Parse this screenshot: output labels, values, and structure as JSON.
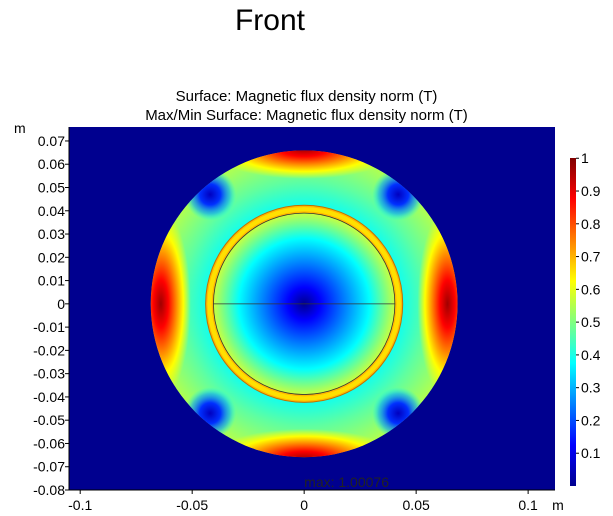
{
  "title": "Front",
  "plot_titles": [
    "Surface: Magnetic flux density norm (T)",
    "Max/Min Surface: Magnetic flux density norm (T)"
  ],
  "colorscale": [
    "#00008f",
    "#0000ff",
    "#0080ff",
    "#00ffff",
    "#80ff80",
    "#ffff00",
    "#ff8000",
    "#ff0000",
    "#800000"
  ],
  "background_color": "#00008f",
  "chart_data": {
    "type": "heatmap",
    "title": "Surface: Magnetic flux density norm (T)",
    "subtitle": "Max/Min Surface: Magnetic flux density norm (T)",
    "x_unit": "m",
    "y_unit": "m",
    "xlim": [
      -0.105,
      0.112
    ],
    "ylim": [
      -0.08,
      0.076
    ],
    "x_ticks": [
      -0.1,
      -0.05,
      0,
      0.05,
      0.1
    ],
    "x_tick_labels": [
      "-0.1",
      "-0.05",
      "0",
      "0.05",
      "0.1"
    ],
    "y_ticks": [
      0.07,
      0.06,
      0.05,
      0.04,
      0.03,
      0.02,
      0.01,
      0,
      -0.01,
      -0.02,
      -0.03,
      -0.04,
      -0.05,
      -0.06,
      -0.07,
      -0.08
    ],
    "y_tick_labels": [
      "0.07",
      "0.06",
      "0.05",
      "0.04",
      "0.03",
      "0.02",
      "0.01",
      "0",
      "-0.01",
      "-0.02",
      "-0.03",
      "-0.04",
      "-0.05",
      "-0.06",
      "-0.07",
      "-0.08"
    ],
    "colorbar_ticks": [
      1,
      0.9,
      0.8,
      0.7,
      0.6,
      0.5,
      0.4,
      0.3,
      0.2,
      0.1
    ],
    "colorbar_tick_labels": [
      "1",
      "0.9",
      "0.8",
      "0.7",
      "0.6",
      "0.5",
      "0.4",
      "0.3",
      "0.2",
      "0.1"
    ],
    "colorbar_range": [
      0,
      1.00076
    ],
    "outer_domain_radius": 0.0685,
    "rotor_outer_radius": 0.044,
    "rotor_inner_radius": 0.0405,
    "max_annotation": "max: 1.00076",
    "max_value": 1.00076,
    "field_samples": [
      {
        "region": "center",
        "x": 0,
        "y": 0,
        "value": 0.05
      },
      {
        "region": "rotor ring",
        "x": 0.042,
        "y": 0,
        "value": 0.65
      },
      {
        "region": "top pole",
        "x": 0,
        "y": 0.064,
        "value": 1.0
      },
      {
        "region": "bottom pole",
        "x": 0,
        "y": -0.064,
        "value": 1.0
      },
      {
        "region": "left pole",
        "x": -0.064,
        "y": 0,
        "value": 1.0
      },
      {
        "region": "right pole",
        "x": 0.064,
        "y": 0,
        "value": 1.0
      },
      {
        "region": "diagonal gaps",
        "x": 0.042,
        "y": 0.047,
        "value": 0.05
      }
    ]
  }
}
